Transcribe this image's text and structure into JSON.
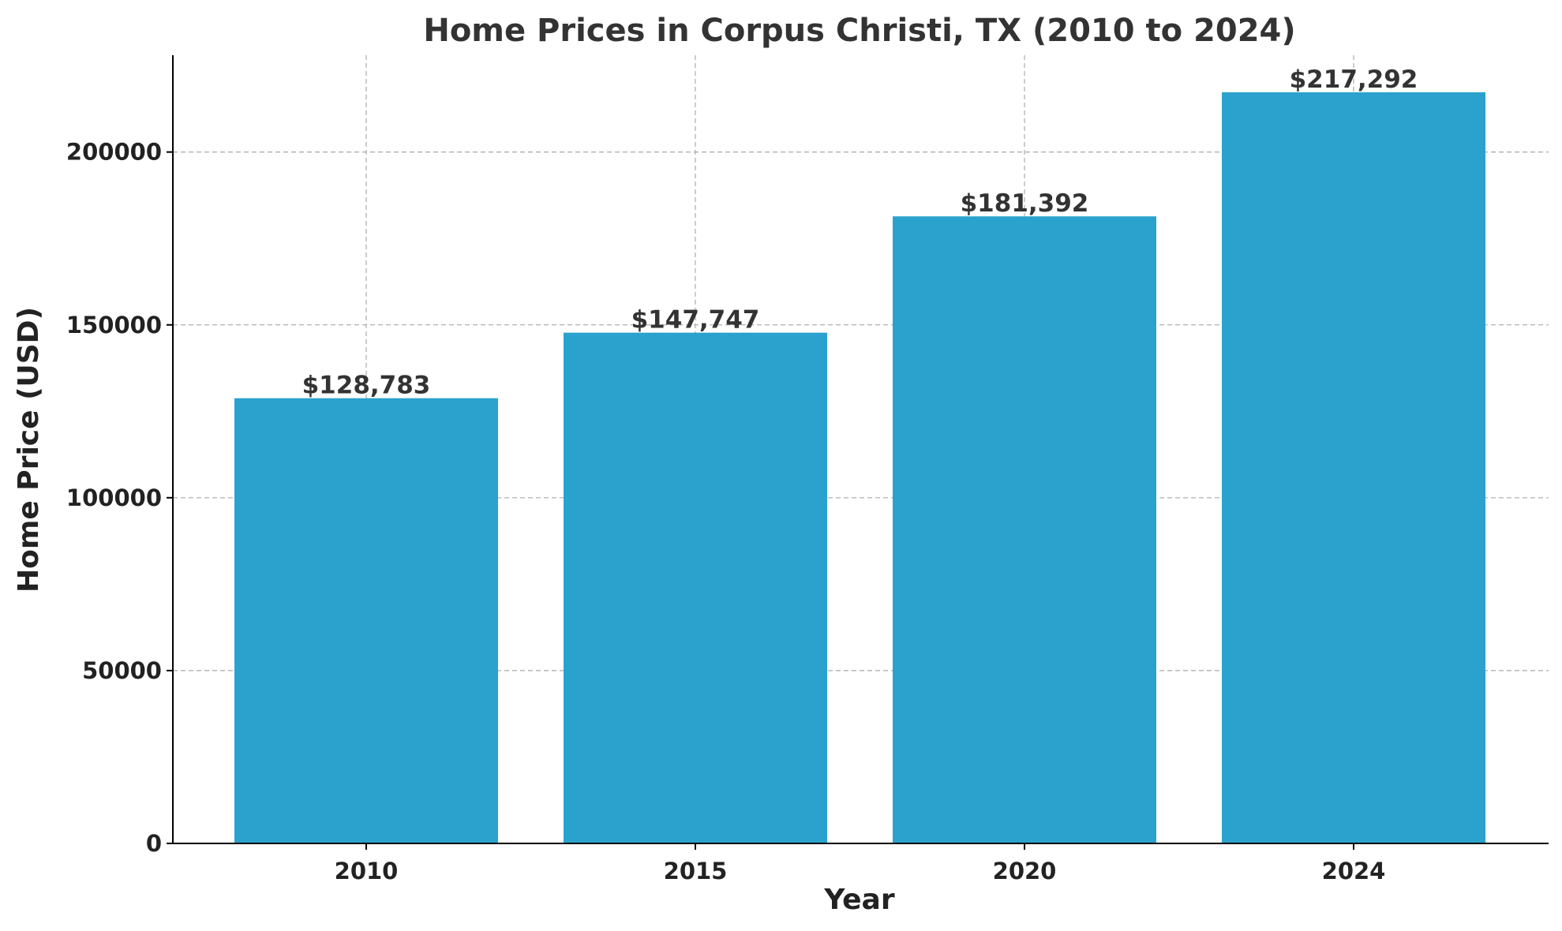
{
  "chart_data": {
    "type": "bar",
    "title": "Home Prices in Corpus Christi, TX (2010 to 2024)",
    "xlabel": "Year",
    "ylabel": "Home Price (USD)",
    "categories": [
      "2010",
      "2015",
      "2020",
      "2024"
    ],
    "values": [
      128783,
      147747,
      181392,
      217292
    ],
    "data_labels": [
      "$128,783",
      "$147,747",
      "$181,392",
      "$217,292"
    ],
    "ylim": [
      0,
      228000
    ],
    "yticks": [
      0,
      50000,
      100000,
      150000,
      200000
    ],
    "ytick_labels": [
      "0",
      "50000",
      "100000",
      "150000",
      "200000"
    ],
    "grid": true,
    "bar_color": "#2ba2cd"
  }
}
